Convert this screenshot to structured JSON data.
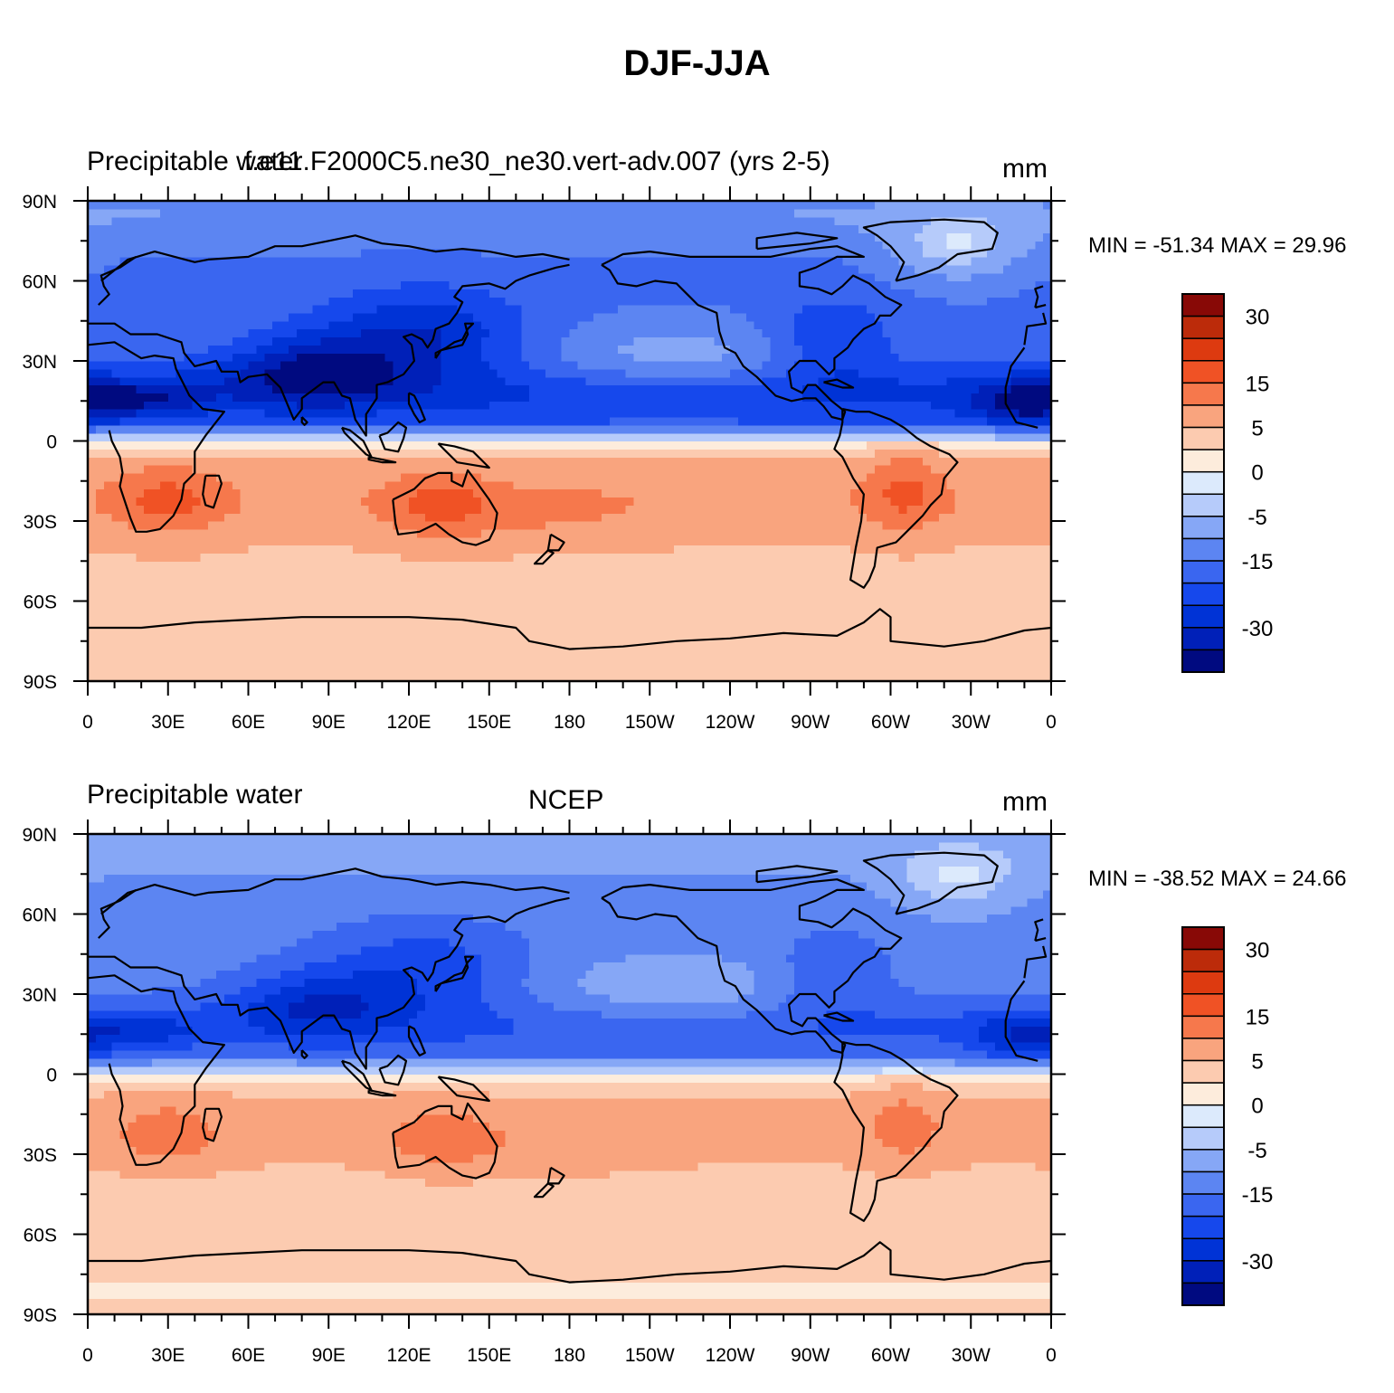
{
  "chart_data": {
    "title": "DJF-JJA",
    "panels": [
      {
        "type": "heatmap",
        "left_label": "Precipitable water",
        "center_label": "f.e11.F2000C5.ne30_ne30.vert-adv.007 (yrs 2-5)",
        "units": "mm",
        "min_max_text": "MIN = -51.34 MAX =  29.96",
        "min": -51.34,
        "max": 29.96
      },
      {
        "type": "heatmap",
        "left_label": "Precipitable water",
        "center_label": "NCEP",
        "units": "mm",
        "min_max_text": "MIN = -38.52 MAX =  24.66",
        "min": -38.52,
        "max": 24.66
      }
    ],
    "x_ticks": [
      "0",
      "30E",
      "60E",
      "90E",
      "120E",
      "150E",
      "180",
      "150W",
      "120W",
      "90W",
      "60W",
      "30W",
      "0"
    ],
    "y_ticks": [
      "90N",
      "60N",
      "30N",
      "0",
      "30S",
      "60S",
      "90S"
    ],
    "xlim": [
      0,
      360
    ],
    "ylim": [
      -90,
      90
    ],
    "colorbar": {
      "levels": [
        -40,
        -35,
        -30,
        -25,
        -20,
        -15,
        -10,
        -5,
        -2,
        0,
        2,
        5,
        10,
        15,
        20,
        25,
        30,
        35
      ],
      "labels": [
        "30",
        "15",
        "5",
        "0",
        "-5",
        "-15",
        "-30"
      ],
      "label_values": [
        30,
        15,
        5,
        0,
        -5,
        -15,
        -30
      ],
      "colors": [
        "#000a80",
        "#0020b8",
        "#0033d6",
        "#1648ec",
        "#3a66f0",
        "#5c85f2",
        "#86a7f6",
        "#b6cbfa",
        "#dceafc",
        "#fdecdc",
        "#fccbb0",
        "#f9a47e",
        "#f6784c",
        "#f05225",
        "#dd3a10",
        "#bc2b0a",
        "#880906"
      ]
    }
  }
}
